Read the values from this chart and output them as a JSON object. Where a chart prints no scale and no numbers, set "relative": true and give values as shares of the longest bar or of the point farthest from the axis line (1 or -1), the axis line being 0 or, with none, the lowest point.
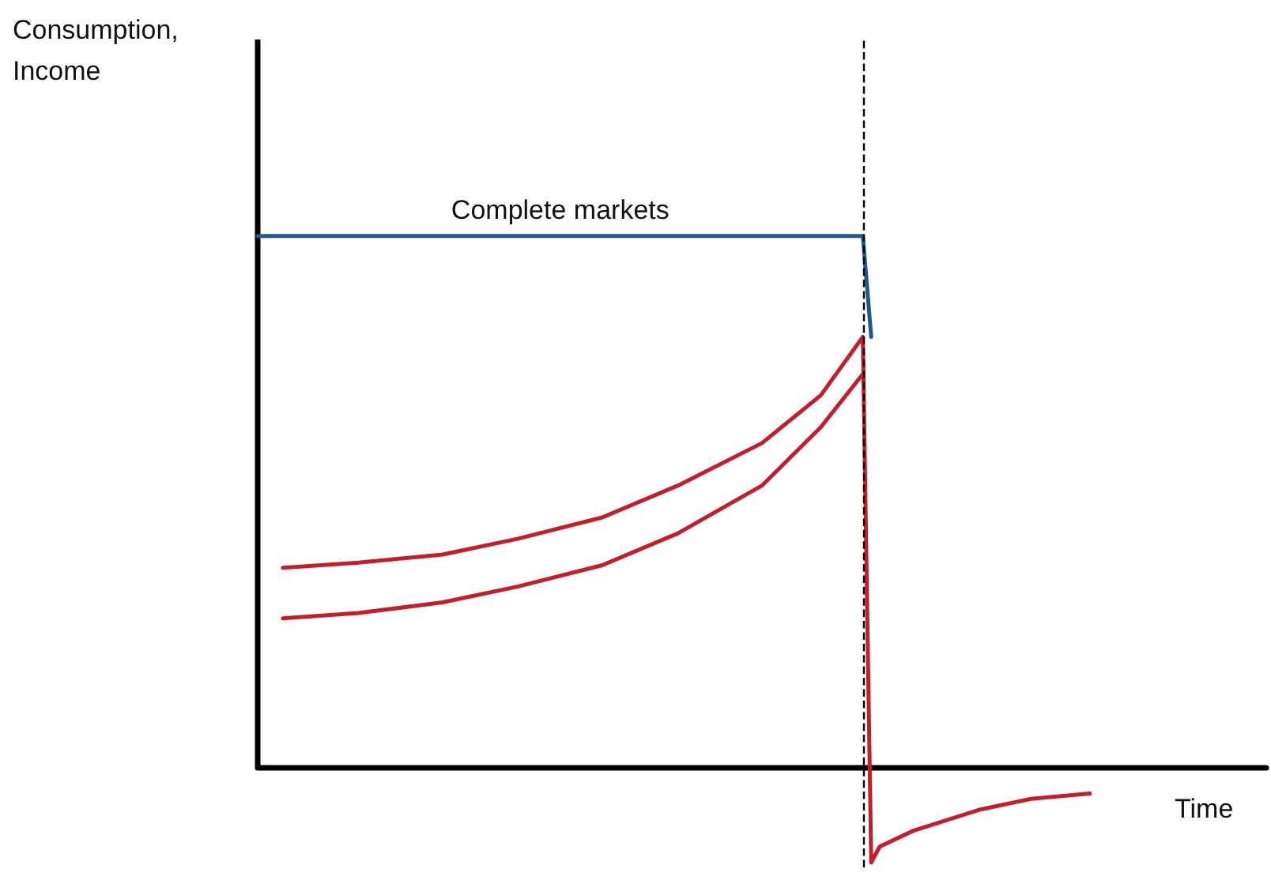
{
  "chart_data": {
    "type": "line",
    "relative": true,
    "xlabel": "Time",
    "annotations": [
      "Consumption, Income"
    ],
    "grid": false,
    "legend": false,
    "marker": "none",
    "line_style": "solid",
    "categories": [
      null,
      null,
      null,
      null,
      null,
      null,
      null,
      null,
      null,
      null,
      null,
      null,
      null,
      null,
      null,
      null,
      null,
      null,
      null,
      null,
      null,
      null,
      null,
      null,
      null,
      null,
      null,
      null,
      null,
      null,
      null,
      null,
      null,
      null,
      null,
      null,
      null,
      null,
      null,
      null,
      null,
      null,
      null,
      null,
      null,
      null,
      null,
      null,
      null,
      null,
      null,
      null,
      null,
      null,
      null,
      null,
      null,
      null,
      null,
      null,
      null,
      null,
      null,
      null,
      null,
      null,
      null,
      null,
      null,
      null,
      null,
      null,
      null,
      null,
      null,
      null,
      null,
      null,
      null,
      null,
      null,
      null,
      null,
      null,
      null,
      null,
      null,
      null,
      null,
      null,
      null,
      null,
      null,
      null,
      null,
      null,
      null,
      null,
      null,
      null,
      null,
      null,
      null,
      null,
      null,
      null,
      null,
      null,
      null,
      null,
      null,
      null,
      null,
      null,
      null,
      null,
      null,
      null,
      null,
      null,
      null
    ],
    "series": [
      {
        "name": "Complete markets",
        "color": "#1f5792",
        "values": [
          1,
          null,
          null,
          null,
          null,
          null,
          null,
          null,
          null,
          null,
          null,
          null,
          null,
          null,
          null,
          null,
          null,
          null,
          null,
          null,
          null,
          null,
          null,
          null,
          null,
          null,
          null,
          null,
          null,
          null,
          null,
          null,
          null,
          null,
          null,
          null,
          1,
          null,
          null,
          null,
          null,
          null,
          null,
          null,
          null,
          null,
          null,
          null,
          null,
          null,
          null,
          null,
          null,
          null,
          null,
          null,
          null,
          null,
          null,
          null,
          null,
          null,
          null,
          null,
          null,
          null,
          null,
          null,
          null,
          null,
          null,
          null,
          1,
          0.81,
          null,
          null,
          null,
          null,
          null,
          null,
          null,
          null,
          null,
          null,
          null,
          null,
          null,
          null,
          null,
          null,
          null,
          null,
          null,
          null,
          null,
          null,
          null,
          null,
          null,
          null,
          null,
          null,
          null,
          null,
          null,
          null,
          null,
          null,
          null,
          null,
          null,
          null,
          null,
          null,
          null,
          null,
          null,
          null,
          null,
          null,
          null
        ]
      },
      {
        "color": "#c41e2d",
        "values": [
          null,
          null,
          null,
          0.375,
          null,
          null,
          null,
          null,
          null,
          null,
          null,
          null,
          0.385,
          null,
          null,
          null,
          null,
          null,
          null,
          null,
          null,
          null,
          0.4,
          null,
          null,
          null,
          null,
          null,
          null,
          null,
          null,
          0.43,
          null,
          null,
          null,
          null,
          null,
          null,
          null,
          null,
          null,
          0.47,
          null,
          null,
          null,
          null,
          null,
          null,
          null,
          null,
          0.53,
          null,
          null,
          null,
          null,
          null,
          null,
          null,
          null,
          null,
          0.61,
          null,
          null,
          null,
          null,
          null,
          null,
          0.7,
          null,
          null,
          null,
          null,
          0.81,
          -0.18,
          -0.15,
          null,
          null,
          null,
          -0.12,
          null,
          null,
          null,
          -0.1,
          null,
          null,
          null,
          -0.08,
          null,
          null,
          null,
          null,
          null,
          -0.06,
          null,
          null,
          null,
          null,
          null,
          null,
          -0.05,
          null,
          null,
          null,
          null,
          null,
          null,
          null,
          null,
          null,
          null,
          null,
          null,
          null,
          null,
          null,
          null,
          null,
          null,
          null,
          null,
          null
        ]
      },
      {
        "color": "#c41e2d",
        "values": [
          null,
          null,
          null,
          0.28,
          null,
          null,
          null,
          null,
          null,
          null,
          null,
          null,
          0.29,
          null,
          null,
          null,
          null,
          null,
          null,
          null,
          null,
          null,
          0.31,
          null,
          null,
          null,
          null,
          null,
          null,
          null,
          null,
          0.34,
          null,
          null,
          null,
          null,
          null,
          null,
          null,
          null,
          null,
          0.38,
          null,
          null,
          null,
          null,
          null,
          null,
          null,
          null,
          0.44,
          null,
          null,
          null,
          null,
          null,
          null,
          null,
          null,
          null,
          0.53,
          null,
          null,
          null,
          null,
          null,
          null,
          0.64,
          null,
          null,
          null,
          null,
          0.74,
          null,
          null,
          null,
          null,
          null,
          null,
          null,
          null,
          null,
          null,
          null,
          null,
          null,
          null,
          null,
          null,
          null,
          null,
          null,
          null,
          null,
          null,
          null,
          null,
          null,
          null,
          null,
          null,
          null,
          null,
          null,
          null,
          null,
          null,
          null,
          null,
          null,
          null,
          null,
          null,
          null,
          null,
          null,
          null,
          null,
          null,
          null,
          null
        ]
      }
    ]
  }
}
